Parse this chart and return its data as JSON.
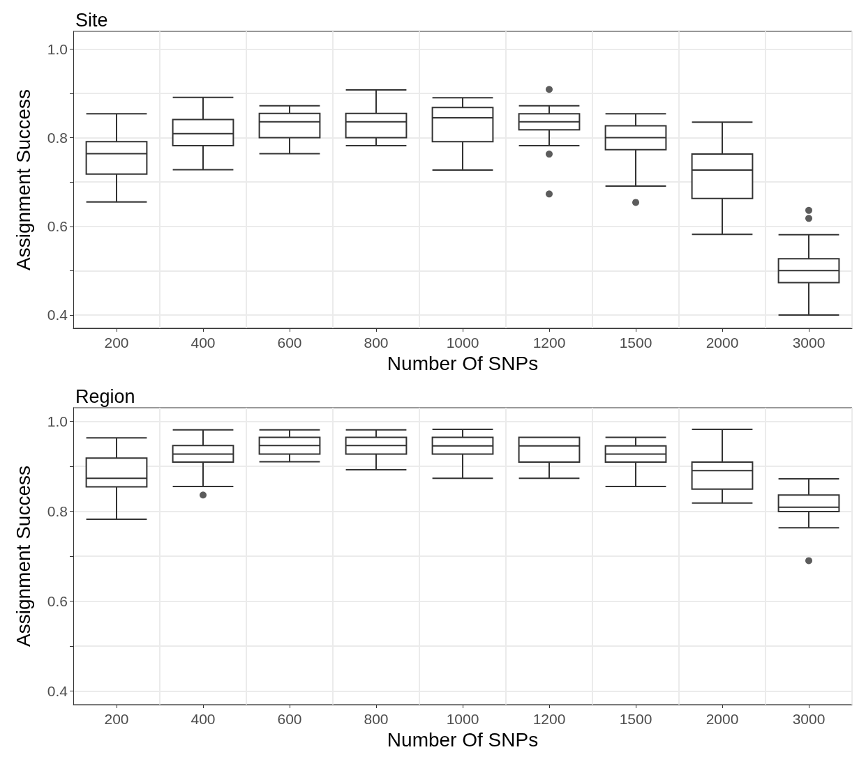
{
  "chart_data": [
    {
      "type": "box",
      "title": "Site",
      "xlabel": "Number Of SNPs",
      "ylabel": "Assignment Success",
      "categories": [
        "200",
        "400",
        "600",
        "800",
        "1000",
        "1200",
        "1500",
        "2000",
        "3000"
      ],
      "ylim": [
        0.37,
        1.04
      ],
      "yticks": [
        0.4,
        {
          "value": 0.5,
          "label": null
        },
        0.6,
        {
          "value": 0.7,
          "label": null
        },
        0.8,
        {
          "value": 0.9,
          "label": null
        },
        {
          "value": 1,
          "label": "1.0"
        }
      ],
      "grid": true,
      "color": "#333333",
      "boxes": [
        {
          "low": 0.655,
          "q1": 0.718,
          "median": 0.764,
          "q3": 0.791,
          "high": 0.854
        },
        {
          "low": 0.728,
          "q1": 0.782,
          "median": 0.809,
          "q3": 0.841,
          "high": 0.891
        },
        {
          "low": 0.764,
          "q1": 0.8,
          "median": 0.836,
          "q3": 0.855,
          "high": 0.872
        },
        {
          "low": 0.782,
          "q1": 0.8,
          "median": 0.836,
          "q3": 0.855,
          "high": 0.908
        },
        {
          "low": 0.727,
          "q1": 0.791,
          "median": 0.845,
          "q3": 0.868,
          "high": 0.89
        },
        {
          "low": 0.782,
          "q1": 0.818,
          "median": 0.836,
          "q3": 0.854,
          "high": 0.872,
          "outliers": [
            0.909,
            0.763,
            0.673
          ]
        },
        {
          "low": 0.691,
          "q1": 0.773,
          "median": 0.8,
          "q3": 0.827,
          "high": 0.854,
          "outliers": [
            0.654
          ]
        },
        {
          "low": 0.582,
          "q1": 0.663,
          "median": 0.727,
          "q3": 0.763,
          "high": 0.835
        },
        {
          "low": 0.4,
          "q1": 0.473,
          "median": 0.5,
          "q3": 0.527,
          "high": 0.581,
          "outliers": [
            0.636,
            0.618
          ]
        }
      ]
    },
    {
      "type": "box",
      "title": "Region",
      "xlabel": "Number Of SNPs",
      "ylabel": "Assignment Success",
      "categories": [
        "200",
        "400",
        "600",
        "800",
        "1000",
        "1200",
        "1500",
        "2000",
        "3000"
      ],
      "ylim": [
        0.37,
        1.03
      ],
      "yticks": [
        0.4,
        {
          "value": 0.5,
          "label": null
        },
        0.6,
        {
          "value": 0.7,
          "label": null
        },
        0.8,
        {
          "value": 0.9,
          "label": null
        },
        {
          "value": 1,
          "label": "1.0"
        }
      ],
      "grid": true,
      "color": "#333333",
      "boxes": [
        {
          "low": 0.782,
          "q1": 0.854,
          "median": 0.873,
          "q3": 0.918,
          "high": 0.963
        },
        {
          "low": 0.855,
          "q1": 0.909,
          "median": 0.927,
          "q3": 0.946,
          "high": 0.981,
          "outliers": [
            0.836
          ]
        },
        {
          "low": 0.91,
          "q1": 0.927,
          "median": 0.946,
          "q3": 0.964,
          "high": 0.981
        },
        {
          "low": 0.892,
          "q1": 0.927,
          "median": 0.946,
          "q3": 0.964,
          "high": 0.981
        },
        {
          "low": 0.873,
          "q1": 0.927,
          "median": 0.945,
          "q3": 0.964,
          "high": 0.982
        },
        {
          "low": 0.873,
          "q1": 0.909,
          "median": 0.945,
          "q3": 0.964,
          "high": 0.964
        },
        {
          "low": 0.855,
          "q1": 0.909,
          "median": 0.927,
          "q3": 0.945,
          "high": 0.964
        },
        {
          "low": 0.818,
          "q1": 0.849,
          "median": 0.89,
          "q3": 0.909,
          "high": 0.982
        },
        {
          "low": 0.763,
          "q1": 0.799,
          "median": 0.809,
          "q3": 0.836,
          "high": 0.872,
          "outliers": [
            0.69
          ]
        }
      ]
    }
  ]
}
